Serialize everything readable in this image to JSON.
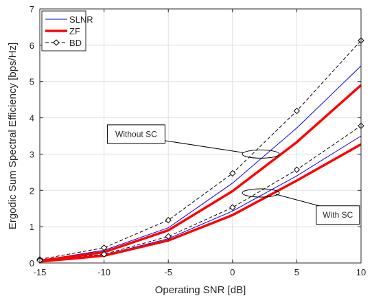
{
  "chart_data": {
    "type": "line",
    "xlabel": "Operating SNR [dB]",
    "ylabel": "Ergodic Sum Spectral Efficiency [bps/Hz]",
    "xlim": [
      -15,
      10
    ],
    "ylim": [
      0,
      7
    ],
    "xticks": [
      -15,
      -10,
      -5,
      0,
      5,
      10
    ],
    "yticks": [
      0,
      1,
      2,
      3,
      4,
      5,
      6,
      7
    ],
    "xtick_labels": [
      "-15",
      "-10",
      "-5",
      "0",
      "5",
      "10"
    ],
    "ytick_labels": [
      "0",
      "1",
      "2",
      "3",
      "4",
      "5",
      "6",
      "7"
    ],
    "grid": true,
    "legend_position": "top-left",
    "x": [
      -15,
      -10,
      -5,
      0,
      5,
      10
    ],
    "series": [
      {
        "name": "SLNR",
        "color": "#0000ff",
        "style": "solid-thin",
        "group": "Without SC",
        "values": [
          0.07,
          0.35,
          0.97,
          2.2,
          3.72,
          5.43
        ]
      },
      {
        "name": "ZF",
        "color": "#ff0000",
        "style": "solid-thick",
        "group": "Without SC",
        "values": [
          0.06,
          0.3,
          0.9,
          1.98,
          3.33,
          4.9
        ]
      },
      {
        "name": "BD",
        "color": "#000000",
        "style": "dashed-diamond",
        "group": "Without SC",
        "values": [
          0.1,
          0.42,
          1.18,
          2.47,
          4.19,
          6.13
        ]
      },
      {
        "name": "SLNR",
        "color": "#0000ff",
        "style": "solid-thin",
        "group": "With SC",
        "values": [
          0.05,
          0.22,
          0.67,
          1.43,
          2.4,
          3.5
        ]
      },
      {
        "name": "ZF",
        "color": "#ff0000",
        "style": "solid-thick",
        "group": "With SC",
        "values": [
          0.04,
          0.2,
          0.62,
          1.32,
          2.27,
          3.27
        ]
      },
      {
        "name": "BD",
        "color": "#000000",
        "style": "dashed-diamond",
        "group": "With SC",
        "values": [
          0.07,
          0.24,
          0.73,
          1.53,
          2.57,
          3.78
        ]
      }
    ],
    "legend": [
      {
        "label": "SLNR",
        "color": "#0000ff",
        "style": "solid-thin"
      },
      {
        "label": "ZF",
        "color": "#ff0000",
        "style": "solid-thick"
      },
      {
        "label": "BD",
        "color": "#000000",
        "style": "dashed-diamond"
      }
    ],
    "annotations": [
      {
        "text": "Without SC",
        "ellipse_at": [
          2.2,
          3.0
        ],
        "box_at": [
          -7.5,
          3.55
        ]
      },
      {
        "text": "With SC",
        "ellipse_at": [
          2.2,
          1.93
        ],
        "box_at": [
          8.2,
          1.32
        ]
      }
    ]
  }
}
